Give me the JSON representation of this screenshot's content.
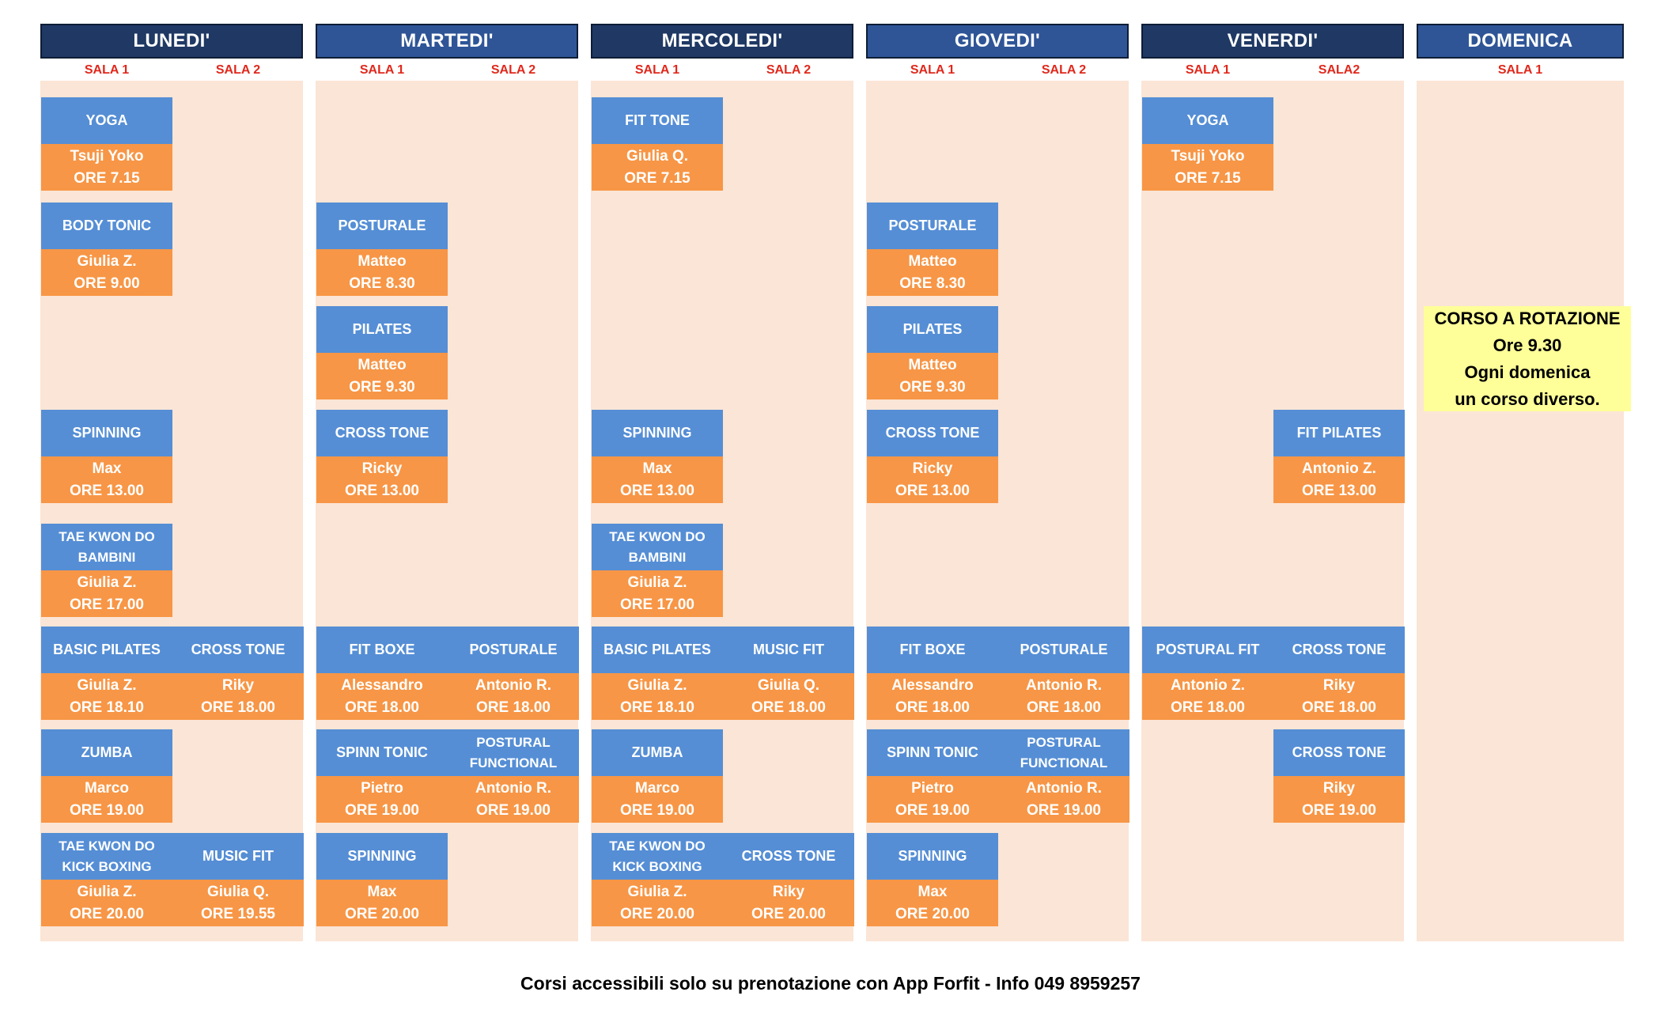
{
  "days": [
    {
      "label": "LUNEDI'",
      "rooms": [
        "SALA 1",
        "SALA 2"
      ]
    },
    {
      "label": "MARTEDI'",
      "rooms": [
        "SALA 1",
        "SALA 2"
      ]
    },
    {
      "label": "MERCOLEDI'",
      "rooms": [
        "SALA 1",
        "SALA 2"
      ]
    },
    {
      "label": "GIOVEDI'",
      "rooms": [
        "SALA 1",
        "SALA 2"
      ]
    },
    {
      "label": "VENERDI'",
      "rooms": [
        "SALA 1",
        "SALA2"
      ]
    },
    {
      "label": "DOMENICA",
      "rooms": [
        "SALA 1"
      ]
    }
  ],
  "courses": [
    {
      "day": 0,
      "room": 0,
      "row": 0,
      "name": "YOGA",
      "teacher": "Tsuji Yoko",
      "time": "ORE 7.15"
    },
    {
      "day": 0,
      "room": 0,
      "row": 1,
      "name": "BODY TONIC",
      "teacher": "Giulia Z.",
      "time": "ORE 9.00"
    },
    {
      "day": 0,
      "room": 0,
      "row": 3,
      "name": "SPINNING",
      "teacher": "Max",
      "time": "ORE 13.00"
    },
    {
      "day": 0,
      "room": 0,
      "row": 4,
      "name": "TAE KWON DO\nBAMBINI",
      "teacher": "Giulia Z.",
      "time": "ORE 17.00"
    },
    {
      "day": 0,
      "room": 0,
      "row": 5,
      "name": "BASIC PILATES",
      "teacher": "Giulia Z.",
      "time": "ORE 18.10"
    },
    {
      "day": 0,
      "room": 1,
      "row": 5,
      "name": "CROSS TONE",
      "teacher": "Riky",
      "time": "ORE 18.00"
    },
    {
      "day": 0,
      "room": 0,
      "row": 6,
      "name": "ZUMBA",
      "teacher": "Marco",
      "time": "ORE 19.00"
    },
    {
      "day": 0,
      "room": 0,
      "row": 7,
      "name": "TAE KWON DO\nKICK BOXING",
      "teacher": "Giulia Z.",
      "time": "ORE 20.00"
    },
    {
      "day": 0,
      "room": 1,
      "row": 7,
      "name": "MUSIC FIT",
      "teacher": "Giulia Q.",
      "time": "ORE 19.55"
    },
    {
      "day": 1,
      "room": 0,
      "row": 1,
      "name": "POSTURALE",
      "teacher": "Matteo",
      "time": "ORE 8.30"
    },
    {
      "day": 1,
      "room": 0,
      "row": 2,
      "name": "PILATES",
      "teacher": "Matteo",
      "time": "ORE 9.30"
    },
    {
      "day": 1,
      "room": 0,
      "row": 3,
      "name": "CROSS TONE",
      "teacher": "Ricky",
      "time": "ORE 13.00"
    },
    {
      "day": 1,
      "room": 0,
      "row": 5,
      "name": "FIT BOXE",
      "teacher": "Alessandro",
      "time": "ORE 18.00"
    },
    {
      "day": 1,
      "room": 1,
      "row": 5,
      "name": "POSTURALE",
      "teacher": "Antonio R.",
      "time": "ORE 18.00"
    },
    {
      "day": 1,
      "room": 0,
      "row": 6,
      "name": "SPINN TONIC",
      "teacher": "Pietro",
      "time": "ORE 19.00"
    },
    {
      "day": 1,
      "room": 1,
      "row": 6,
      "name": "POSTURAL\nFUNCTIONAL",
      "teacher": "Antonio R.",
      "time": "ORE 19.00"
    },
    {
      "day": 1,
      "room": 0,
      "row": 7,
      "name": "SPINNING",
      "teacher": "Max",
      "time": "ORE 20.00"
    },
    {
      "day": 2,
      "room": 0,
      "row": 0,
      "name": "FIT TONE",
      "teacher": "Giulia Q.",
      "time": "ORE 7.15"
    },
    {
      "day": 2,
      "room": 0,
      "row": 3,
      "name": "SPINNING",
      "teacher": "Max",
      "time": "ORE 13.00"
    },
    {
      "day": 2,
      "room": 0,
      "row": 4,
      "name": "TAE KWON DO\nBAMBINI",
      "teacher": "Giulia Z.",
      "time": "ORE 17.00"
    },
    {
      "day": 2,
      "room": 0,
      "row": 5,
      "name": "BASIC PILATES",
      "teacher": "Giulia Z.",
      "time": "ORE 18.10"
    },
    {
      "day": 2,
      "room": 1,
      "row": 5,
      "name": "MUSIC FIT",
      "teacher": "Giulia Q.",
      "time": "ORE 18.00"
    },
    {
      "day": 2,
      "room": 0,
      "row": 6,
      "name": "ZUMBA",
      "teacher": "Marco",
      "time": "ORE 19.00"
    },
    {
      "day": 2,
      "room": 0,
      "row": 7,
      "name": "TAE KWON DO\nKICK BOXING",
      "teacher": "Giulia Z.",
      "time": "ORE 20.00"
    },
    {
      "day": 2,
      "room": 1,
      "row": 7,
      "name": "CROSS TONE",
      "teacher": "Riky",
      "time": "ORE 20.00"
    },
    {
      "day": 3,
      "room": 0,
      "row": 1,
      "name": "POSTURALE",
      "teacher": "Matteo",
      "time": "ORE 8.30"
    },
    {
      "day": 3,
      "room": 0,
      "row": 2,
      "name": "PILATES",
      "teacher": "Matteo",
      "time": "ORE 9.30"
    },
    {
      "day": 3,
      "room": 0,
      "row": 3,
      "name": "CROSS TONE",
      "teacher": "Ricky",
      "time": "ORE 13.00"
    },
    {
      "day": 3,
      "room": 0,
      "row": 5,
      "name": "FIT BOXE",
      "teacher": "Alessandro",
      "time": "ORE 18.00"
    },
    {
      "day": 3,
      "room": 1,
      "row": 5,
      "name": "POSTURALE",
      "teacher": "Antonio R.",
      "time": "ORE 18.00"
    },
    {
      "day": 3,
      "room": 0,
      "row": 6,
      "name": "SPINN TONIC",
      "teacher": "Pietro",
      "time": "ORE 19.00"
    },
    {
      "day": 3,
      "room": 1,
      "row": 6,
      "name": "POSTURAL\nFUNCTIONAL",
      "teacher": "Antonio R.",
      "time": "ORE 19.00"
    },
    {
      "day": 3,
      "room": 0,
      "row": 7,
      "name": "SPINNING",
      "teacher": "Max",
      "time": "ORE 20.00"
    },
    {
      "day": 4,
      "room": 0,
      "row": 0,
      "name": "YOGA",
      "teacher": "Tsuji Yoko",
      "time": "ORE 7.15"
    },
    {
      "day": 4,
      "room": 1,
      "row": 3,
      "name": "FIT PILATES",
      "teacher": "Antonio Z.",
      "time": "ORE 13.00"
    },
    {
      "day": 4,
      "room": 0,
      "row": 5,
      "name": "POSTURAL FIT",
      "teacher": "Antonio Z.",
      "time": "ORE 18.00"
    },
    {
      "day": 4,
      "room": 1,
      "row": 5,
      "name": "CROSS TONE",
      "teacher": "Riky",
      "time": "ORE 18.00"
    },
    {
      "day": 4,
      "room": 1,
      "row": 6,
      "name": "CROSS TONE",
      "teacher": "Riky",
      "time": "ORE 19.00"
    }
  ],
  "sunday_note": [
    "CORSO A ROTAZIONE",
    "Ore 9.30",
    "Ogni domenica",
    "un corso diverso."
  ],
  "footer": "Corsi accessibili solo su prenotazione con App Forfit - Info 049 8959257",
  "colors": {
    "header_dark": "#1f3864",
    "header_mid": "#2f5597",
    "room_label": "#e0281c",
    "column_bg": "#fbe5d6",
    "course_name_bg": "#558ed5",
    "course_info_bg": "#f79646",
    "special_bg": "#ffff99"
  }
}
